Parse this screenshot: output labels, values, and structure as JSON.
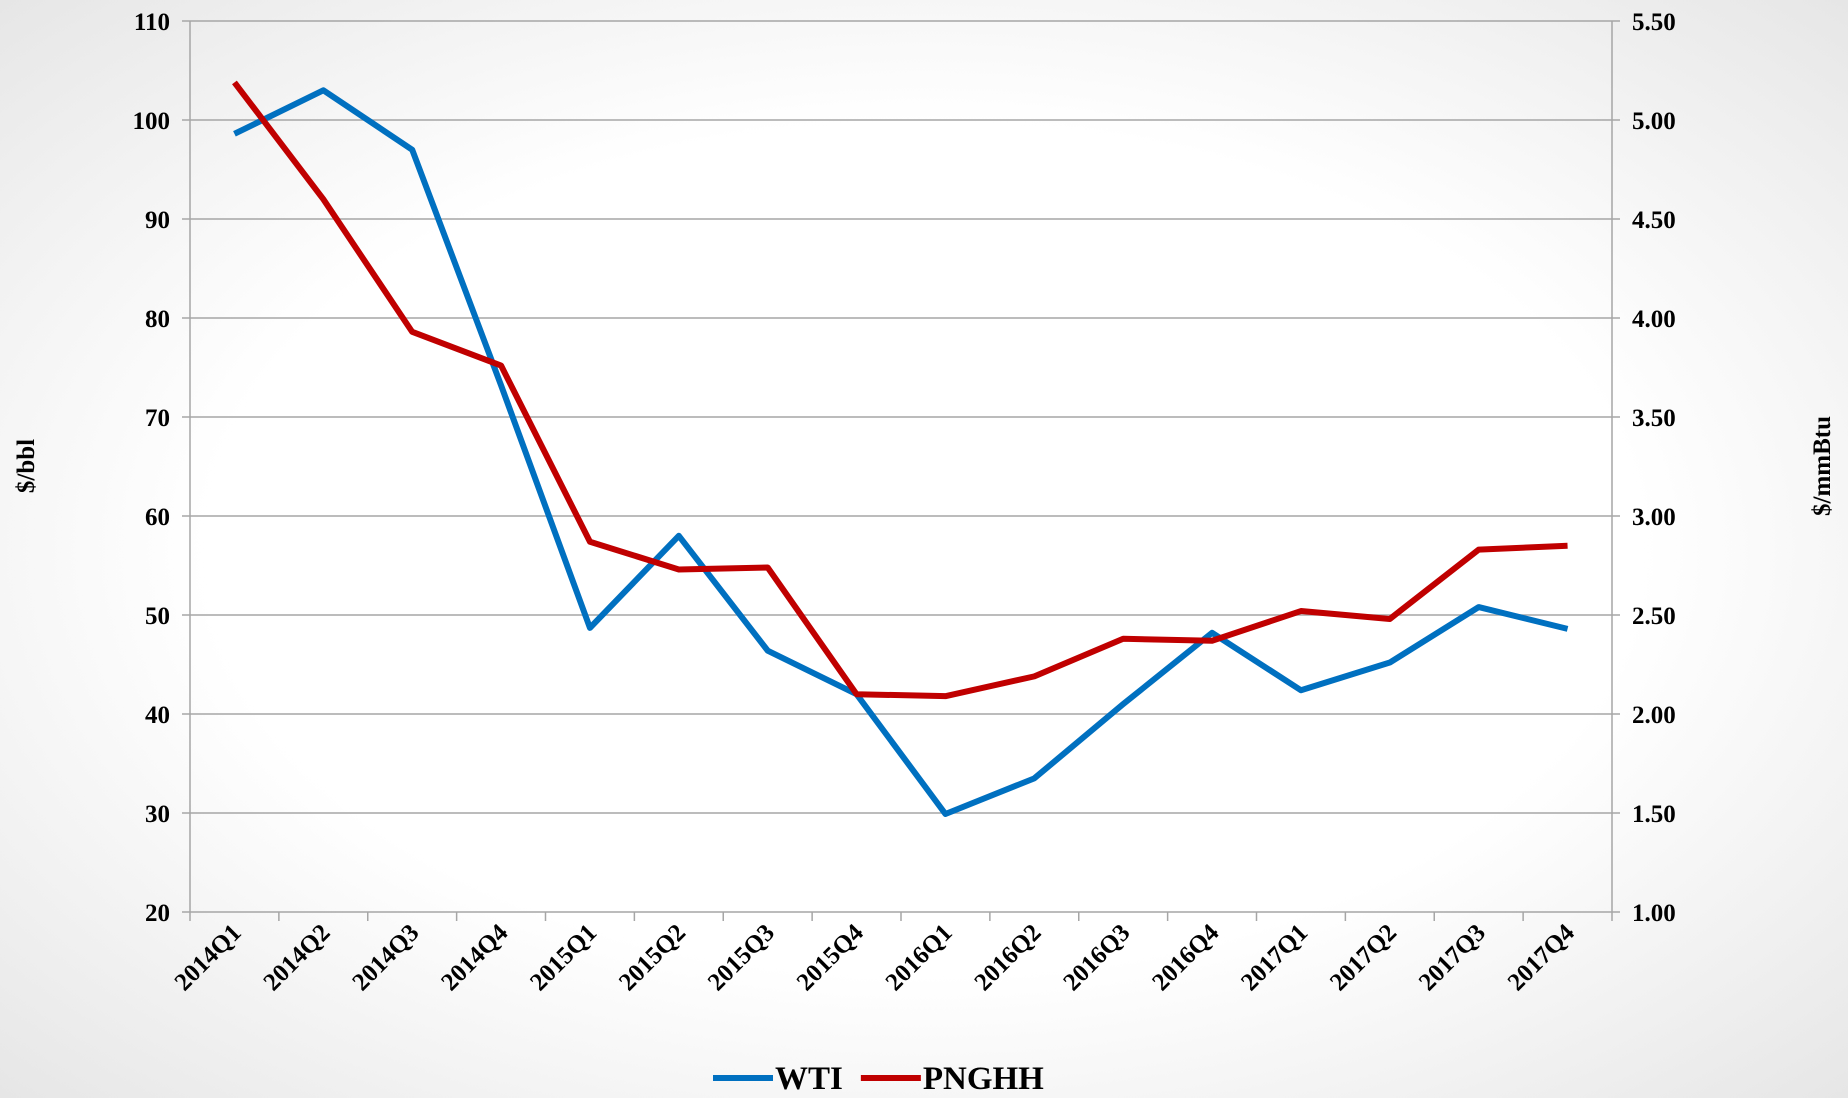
{
  "chart_data": {
    "type": "line",
    "categories": [
      "2014Q1",
      "2014Q2",
      "2014Q3",
      "2014Q4",
      "2015Q1",
      "2015Q2",
      "2015Q3",
      "2015Q4",
      "2016Q1",
      "2016Q2",
      "2016Q3",
      "2016Q4",
      "2017Q1",
      "2017Q2",
      "2017Q3",
      "2017Q4"
    ],
    "series": [
      {
        "name": "WTI",
        "color": "#0070c0",
        "values": [
          98.6,
          103,
          97,
          73.2,
          48.7,
          58,
          46.4,
          42,
          29.9,
          33.5,
          41,
          48.2,
          42.4,
          45.2,
          50.8,
          48.6
        ]
      },
      {
        "name": "PNGHH",
        "color": "#c00000",
        "axis": "y2",
        "values": [
          5.19,
          4.6,
          3.93,
          3.76,
          2.87,
          2.73,
          2.74,
          2.1,
          2.09,
          2.19,
          2.38,
          2.37,
          2.52,
          2.48,
          2.83,
          2.85
        ]
      }
    ],
    "ylabel": "$/bbl",
    "y2label": "$/mmBtu",
    "ylim": [
      20,
      110
    ],
    "yticks": [
      20,
      30,
      40,
      50,
      60,
      70,
      80,
      90,
      100,
      110
    ],
    "y2lim": [
      1,
      5.5
    ],
    "y2ticks": [
      {
        "value": 1,
        "label": "1.00"
      },
      {
        "value": 1.5,
        "label": "1.50"
      },
      {
        "value": 2,
        "label": "2.00"
      },
      {
        "value": 2.5,
        "label": "2.50"
      },
      {
        "value": 3,
        "label": "3.00"
      },
      {
        "value": 3.5,
        "label": "3.50"
      },
      {
        "value": 4,
        "label": "4.00"
      },
      {
        "value": 4.5,
        "label": "4.50"
      },
      {
        "value": 5,
        "label": "5.00"
      },
      {
        "value": 5.5,
        "label": "5.50"
      }
    ],
    "grid": true,
    "legend": "bottom"
  }
}
